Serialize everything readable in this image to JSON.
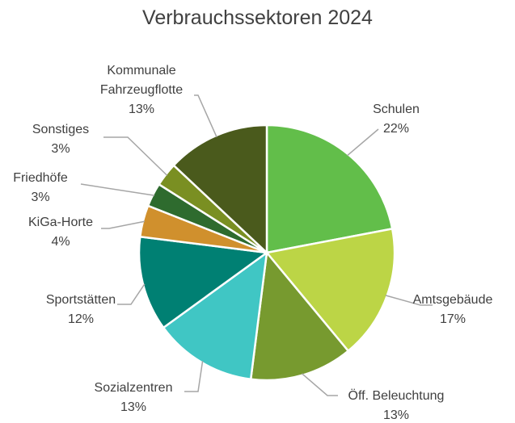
{
  "chart_data": {
    "type": "pie",
    "title": "Verbrauchssektoren  2024",
    "categories": [
      "Schulen",
      "Amtsgebäude",
      "Öff. Beleuchtung",
      "Sozialzentren",
      "Sportstätten",
      "KiGa-Horte",
      "Friedhöfe",
      "Sonstiges",
      "Kommunale Fahrzeugflotte"
    ],
    "values": [
      22,
      17,
      13,
      13,
      12,
      4,
      3,
      3,
      13
    ],
    "value_labels": [
      "22%",
      "17%",
      "13%",
      "13%",
      "12%",
      "4%",
      "3%",
      "3%",
      "13%"
    ],
    "colors": [
      "#62be4a",
      "#bcd546",
      "#779a2f",
      "#40c6c4",
      "#008073",
      "#d0902d",
      "#2e6b2e",
      "#7a8f22",
      "#4a5a1c"
    ]
  }
}
